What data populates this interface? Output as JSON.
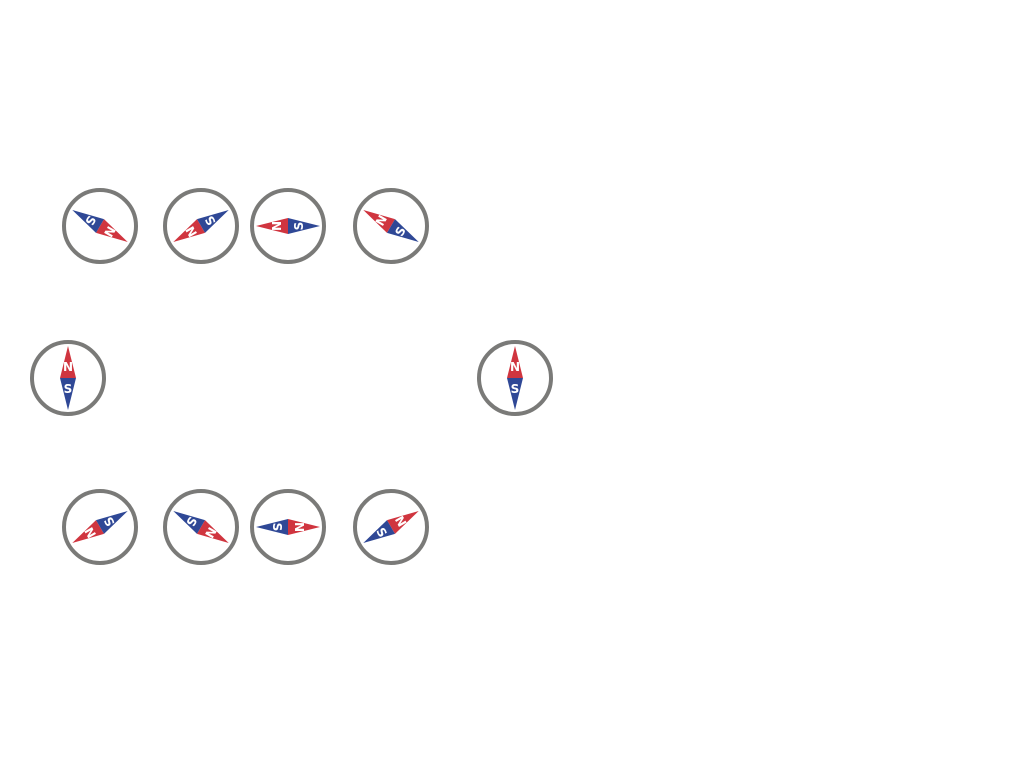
{
  "colors": {
    "ring": "#7a7a78",
    "north": "#d0353f",
    "south": "#2f4896",
    "background": "#ffffff",
    "letter": "#ffffff"
  },
  "labels": {
    "north": "N",
    "south": "S"
  },
  "compasses": [
    {
      "id": "top-1",
      "heading_deg": 120
    },
    {
      "id": "top-2",
      "heading_deg": 240
    },
    {
      "id": "top-3",
      "heading_deg": 270
    },
    {
      "id": "top-4",
      "heading_deg": 300
    },
    {
      "id": "middle-left",
      "heading_deg": 0
    },
    {
      "id": "middle-right",
      "heading_deg": 0
    },
    {
      "id": "bottom-1",
      "heading_deg": 240
    },
    {
      "id": "bottom-2",
      "heading_deg": 120
    },
    {
      "id": "bottom-3",
      "heading_deg": 90
    },
    {
      "id": "bottom-4",
      "heading_deg": 60
    }
  ]
}
